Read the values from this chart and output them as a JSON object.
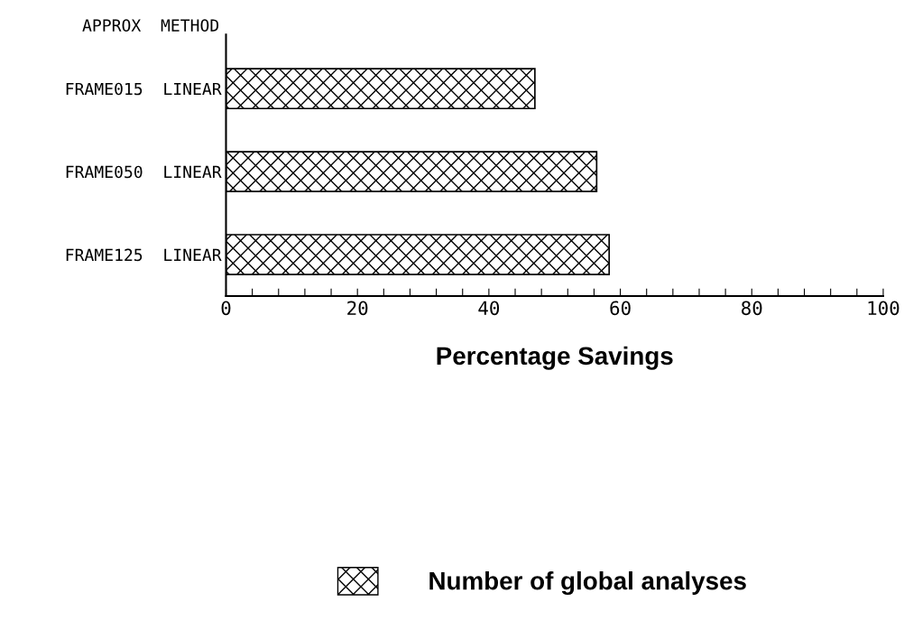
{
  "chart_data": {
    "type": "bar",
    "orientation": "horizontal",
    "categories": [
      "FRAME015  LINEAR",
      "FRAME050  LINEAR",
      "FRAME125  LINEAR"
    ],
    "series": [
      {
        "name": "Number of global analyses",
        "color": "#000000",
        "values": [
          47.0,
          56.4,
          58.3
        ]
      }
    ],
    "xlabel": "Percentage Savings",
    "annotations": [
      "APPROX  METHOD"
    ],
    "xlim": [
      0,
      100
    ],
    "xticks": [
      0,
      {
        "value": 4,
        "label": null
      },
      {
        "value": 8,
        "label": null
      },
      {
        "value": 12,
        "label": null
      },
      {
        "value": 16,
        "label": null
      },
      20,
      {
        "value": 24,
        "label": null
      },
      {
        "value": 28,
        "label": null
      },
      {
        "value": 32,
        "label": null
      },
      {
        "value": 36,
        "label": null
      },
      40,
      {
        "value": 44,
        "label": null
      },
      {
        "value": 48,
        "label": null
      },
      {
        "value": 52,
        "label": null
      },
      {
        "value": 56,
        "label": null
      },
      60,
      {
        "value": 64,
        "label": null
      },
      {
        "value": 68,
        "label": null
      },
      {
        "value": 72,
        "label": null
      },
      {
        "value": 76,
        "label": null
      },
      80,
      {
        "value": 84,
        "label": null
      },
      {
        "value": 88,
        "label": null
      },
      {
        "value": 92,
        "label": null
      },
      {
        "value": 96,
        "label": null
      },
      100
    ],
    "grid": false,
    "legend": "bottom"
  }
}
